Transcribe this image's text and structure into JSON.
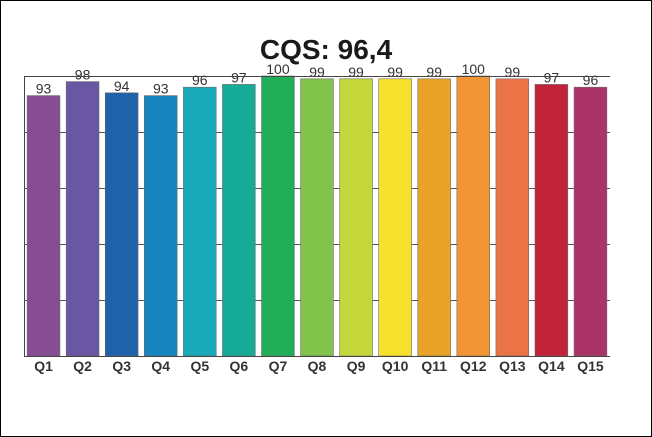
{
  "chart_data": {
    "type": "bar",
    "title": "CQS: 96,4",
    "xlabel": "",
    "ylabel": "",
    "categories": [
      "Q1",
      "Q2",
      "Q3",
      "Q4",
      "Q5",
      "Q6",
      "Q7",
      "Q8",
      "Q9",
      "Q10",
      "Q11",
      "Q12",
      "Q13",
      "Q14",
      "Q15"
    ],
    "values": [
      93,
      98,
      94,
      93,
      96,
      97,
      100,
      99,
      99,
      99,
      99,
      100,
      99,
      97,
      96
    ],
    "ylim": [
      0,
      100
    ],
    "y_gridline_values": [
      20,
      40,
      60,
      80,
      100
    ],
    "y_tick_labels_visible": false,
    "grid": true,
    "legend": "none",
    "bar_colors": [
      "#864c94",
      "#6a57a3",
      "#1f62aa",
      "#1584bf",
      "#19a9b9",
      "#16ab97",
      "#21ae58",
      "#82c34b",
      "#c4d73a",
      "#f8e12d",
      "#e9a428",
      "#f29534",
      "#ea7445",
      "#c12438",
      "#aa3467"
    ]
  }
}
